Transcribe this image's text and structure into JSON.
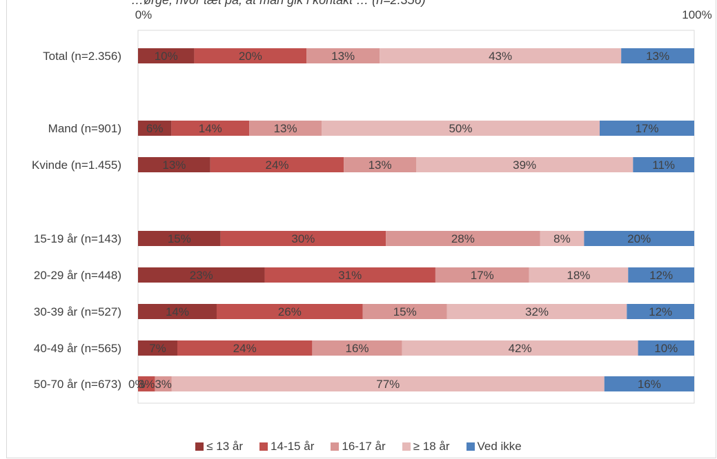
{
  "header": {
    "cut_off_subtitle": "…ørge, hvor tæt på, at man gik i kontakt … (n=2.356)"
  },
  "colors": {
    "le13": "#953735",
    "a14_15": "#c0504d",
    "a16_17": "#d99694",
    "ge18": "#e6b9b8",
    "ved_ikke": "#4f81bd"
  },
  "chart_data": {
    "type": "bar",
    "orientation": "horizontal",
    "stacked": "percent",
    "xlim": [
      0,
      100
    ],
    "x_tick_labels": [
      "0%",
      "100%"
    ],
    "categories": [
      "Total (n=2.356)",
      "Mand (n=901)",
      "Kvinde (n=1.455)",
      "15-19 år (n=143)",
      "20-29 år (n=448)",
      "30-39 år (n=527)",
      "40-49 år (n=565)",
      "50-70 år (n=673)"
    ],
    "series": [
      {
        "name": "≤ 13 år",
        "color": "#953735",
        "values": [
          10,
          6,
          13,
          15,
          23,
          14,
          7,
          0
        ],
        "labels": [
          "10%",
          "6%",
          "13%",
          "15%",
          "23%",
          "14%",
          "7%",
          "0%"
        ]
      },
      {
        "name": "14-15 år",
        "color": "#c0504d",
        "values": [
          20,
          14,
          24,
          30,
          31,
          26,
          24,
          3
        ],
        "labels": [
          "20%",
          "14%",
          "24%",
          "30%",
          "31%",
          "26%",
          "24%",
          "3%"
        ]
      },
      {
        "name": "16-17 år",
        "color": "#d99694",
        "values": [
          13,
          13,
          13,
          28,
          17,
          15,
          16,
          3
        ],
        "labels": [
          "13%",
          "13%",
          "13%",
          "28%",
          "17%",
          "15%",
          "16%",
          "3%"
        ]
      },
      {
        "name": "≥ 18 år",
        "color": "#e6b9b8",
        "values": [
          43,
          50,
          39,
          8,
          18,
          32,
          42,
          77
        ],
        "labels": [
          "43%",
          "50%",
          "39%",
          "8%",
          "18%",
          "32%",
          "42%",
          "77%"
        ]
      },
      {
        "name": "Ved ikke",
        "color": "#4f81bd",
        "values": [
          13,
          17,
          11,
          20,
          12,
          12,
          10,
          16
        ],
        "labels": [
          "13%",
          "17%",
          "11%",
          "20%",
          "12%",
          "12%",
          "10%",
          "16%"
        ]
      }
    ],
    "legend_position": "bottom",
    "grid": false
  }
}
